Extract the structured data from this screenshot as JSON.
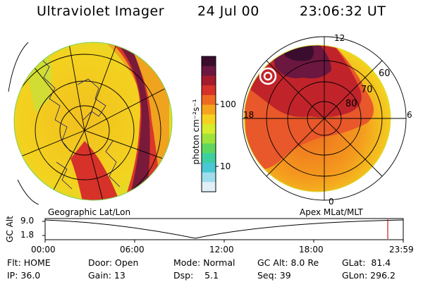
{
  "header": {
    "title": "Ultraviolet Imager",
    "date": "24 Jul 00",
    "time": "23:06:32 UT"
  },
  "colorbar": {
    "unit_label": "photon cm⁻²s⁻¹",
    "tick_100": "100",
    "tick_10": "10",
    "colors": [
      "#3a0d2e",
      "#6b1740",
      "#a51a2c",
      "#d6322a",
      "#ee6a20",
      "#f6a31e",
      "#f4d21f",
      "#d6ec2c",
      "#9fe33a",
      "#5fd660",
      "#3ccfa0",
      "#49c8d4",
      "#9fdcec",
      "#e0f0f6"
    ]
  },
  "geo_panel": {
    "label": "Geographic Lat/Lon"
  },
  "apex_panel": {
    "label": "Apex MLat/MLT",
    "mlt_12": "12",
    "mlt_18": "18",
    "mlt_6": "6",
    "mlt_0": "0",
    "lat_60": "60",
    "lat_70": "70",
    "lat_80": "80"
  },
  "alt_plot": {
    "ylabel": "GC Alt",
    "y_top": "9.0",
    "y_bottom": "1.8",
    "x_ticks": [
      "00:00",
      "06:00",
      "12:00",
      "18:00",
      "23:59"
    ],
    "marker_color": "#cc1a1a"
  },
  "status": {
    "flt": "Flt: HOME",
    "ip": "IP: 36.0",
    "door": "Door: Open",
    "gain": "Gain: 13",
    "mode": "Mode: Normal",
    "dsp": "Dsp:    5.1",
    "gc_alt": "GC Alt: 8.0 Re",
    "seq": "Seq: 39",
    "glat": "GLat:  81.4",
    "glon": "GLon: 296.2"
  }
}
